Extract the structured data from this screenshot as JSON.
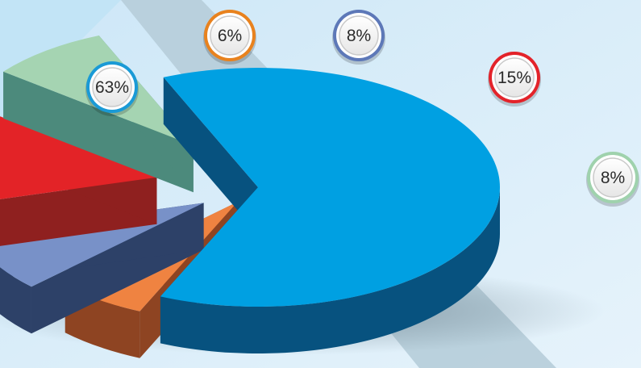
{
  "chart_data": {
    "type": "pie",
    "style": "3d-exploded",
    "title": "",
    "legend": "none",
    "series": [
      {
        "slices": [
          {
            "value": 63,
            "label": "63%",
            "color": "#00a0e2",
            "side": "#07527f",
            "ring": "#1a9ad6"
          },
          {
            "value": 6,
            "label": "6%",
            "color": "#ef8341",
            "side": "#8e4422",
            "ring": "#e8821e"
          },
          {
            "value": 8,
            "label": "8%",
            "color": "#7891c8",
            "side": "#2d4168",
            "ring": "#5d78b8"
          },
          {
            "value": 15,
            "label": "15%",
            "color": "#e32327",
            "side": "#8f201f",
            "ring": "#e3232a"
          },
          {
            "value": 8,
            "label": "8%",
            "color": "#a5d4b2",
            "side": "#4c8a7c",
            "ring": "#9fd2ad"
          }
        ]
      }
    ]
  },
  "colors": {
    "background": "#d4eaf8",
    "background_light": "#e8f4fb",
    "stripe": "#b9cfdb"
  }
}
